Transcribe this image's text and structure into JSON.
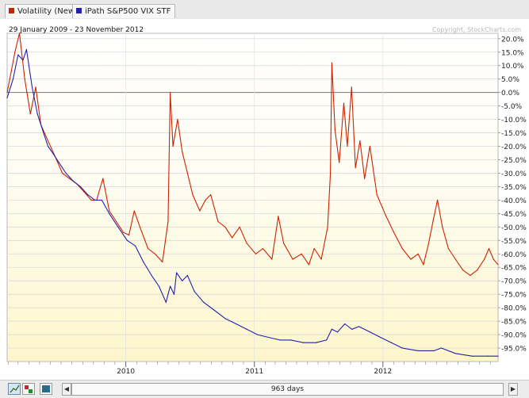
{
  "legend": [
    {
      "label": "Volatility (New)",
      "color": "#cc2200"
    },
    {
      "label": "iPath S&P500 VIX STF",
      "color": "#2222aa"
    }
  ],
  "date_range": "29 January 2009 - 23 November 2012",
  "copyright": "Copyright, StockCharts.com",
  "scroll_label": "963 days",
  "chart_data": {
    "type": "line",
    "ylabel_format": "percent",
    "ylim": [
      -100,
      22
    ],
    "yticks": [
      20,
      15,
      10,
      5,
      0,
      -5,
      -10,
      -15,
      -20,
      -25,
      -30,
      -35,
      -40,
      -45,
      -50,
      -55,
      -60,
      -65,
      -70,
      -75,
      -80,
      -85,
      -90,
      -95
    ],
    "ytick_labels": [
      "20.0%",
      "15.0%",
      "10.0%",
      "5.0%",
      "0.0%",
      "-5.0%",
      "-10.0%",
      "-15.0%",
      "-20.0%",
      "-25.0%",
      "-30.0%",
      "-35.0%",
      "-40.0%",
      "-45.0%",
      "-50.0%",
      "-55.0%",
      "-60.0%",
      "-65.0%",
      "-70.0%",
      "-75.0%",
      "-80.0%",
      "-85.0%",
      "-90.0%",
      "-95.0%"
    ],
    "x_start": "2009-01-29",
    "x_end": "2012-11-23",
    "xticks": [
      {
        "label": "2010",
        "date": "2010-01-01"
      },
      {
        "label": "2011",
        "date": "2011-01-01"
      },
      {
        "label": "2012",
        "date": "2012-01-01"
      }
    ],
    "series": [
      {
        "name": "Volatility (New)",
        "color": "#cc2200",
        "points": [
          [
            "2009-01-29",
            0
          ],
          [
            "2009-02-10",
            8
          ],
          [
            "2009-02-20",
            15
          ],
          [
            "2009-03-05",
            22
          ],
          [
            "2009-03-20",
            5
          ],
          [
            "2009-04-05",
            -8
          ],
          [
            "2009-04-20",
            2
          ],
          [
            "2009-05-05",
            -12
          ],
          [
            "2009-05-25",
            -18
          ],
          [
            "2009-06-15",
            -24
          ],
          [
            "2009-07-05",
            -30
          ],
          [
            "2009-07-25",
            -32
          ],
          [
            "2009-08-15",
            -34
          ],
          [
            "2009-09-05",
            -37
          ],
          [
            "2009-09-25",
            -40
          ],
          [
            "2009-10-10",
            -40
          ],
          [
            "2009-10-28",
            -32
          ],
          [
            "2009-11-15",
            -44
          ],
          [
            "2009-12-05",
            -48
          ],
          [
            "2009-12-25",
            -52
          ],
          [
            "2010-01-10",
            -53
          ],
          [
            "2010-01-25",
            -44
          ],
          [
            "2010-02-10",
            -50
          ],
          [
            "2010-03-05",
            -58
          ],
          [
            "2010-03-25",
            -60
          ],
          [
            "2010-04-15",
            -63
          ],
          [
            "2010-05-01",
            -48
          ],
          [
            "2010-05-07",
            0
          ],
          [
            "2010-05-15",
            -20
          ],
          [
            "2010-05-28",
            -10
          ],
          [
            "2010-06-10",
            -22
          ],
          [
            "2010-06-25",
            -30
          ],
          [
            "2010-07-10",
            -38
          ],
          [
            "2010-07-30",
            -44
          ],
          [
            "2010-08-15",
            -40
          ],
          [
            "2010-08-30",
            -38
          ],
          [
            "2010-09-20",
            -48
          ],
          [
            "2010-10-10",
            -50
          ],
          [
            "2010-10-30",
            -54
          ],
          [
            "2010-11-20",
            -50
          ],
          [
            "2010-12-10",
            -56
          ],
          [
            "2011-01-05",
            -60
          ],
          [
            "2011-01-25",
            -58
          ],
          [
            "2011-02-20",
            -62
          ],
          [
            "2011-03-10",
            -46
          ],
          [
            "2011-03-25",
            -56
          ],
          [
            "2011-04-20",
            -62
          ],
          [
            "2011-05-15",
            -60
          ],
          [
            "2011-06-05",
            -64
          ],
          [
            "2011-06-20",
            -58
          ],
          [
            "2011-07-10",
            -62
          ],
          [
            "2011-07-28",
            -50
          ],
          [
            "2011-08-05",
            -30
          ],
          [
            "2011-08-09",
            11
          ],
          [
            "2011-08-18",
            -14
          ],
          [
            "2011-08-30",
            -26
          ],
          [
            "2011-09-12",
            -4
          ],
          [
            "2011-09-22",
            -20
          ],
          [
            "2011-10-04",
            2
          ],
          [
            "2011-10-15",
            -28
          ],
          [
            "2011-10-28",
            -18
          ],
          [
            "2011-11-10",
            -32
          ],
          [
            "2011-11-25",
            -20
          ],
          [
            "2011-12-15",
            -38
          ],
          [
            "2012-01-10",
            -46
          ],
          [
            "2012-02-01",
            -52
          ],
          [
            "2012-02-25",
            -58
          ],
          [
            "2012-03-20",
            -62
          ],
          [
            "2012-04-10",
            -60
          ],
          [
            "2012-04-25",
            -64
          ],
          [
            "2012-05-10",
            -56
          ],
          [
            "2012-05-22",
            -48
          ],
          [
            "2012-06-04",
            -40
          ],
          [
            "2012-06-18",
            -50
          ],
          [
            "2012-07-05",
            -58
          ],
          [
            "2012-07-25",
            -62
          ],
          [
            "2012-08-15",
            -66
          ],
          [
            "2012-09-05",
            -68
          ],
          [
            "2012-09-25",
            -66
          ],
          [
            "2012-10-15",
            -62
          ],
          [
            "2012-10-28",
            -58
          ],
          [
            "2012-11-10",
            -62
          ],
          [
            "2012-11-23",
            -64
          ]
        ]
      },
      {
        "name": "iPath S&P500 VIX STF",
        "color": "#2222aa",
        "points": [
          [
            "2009-01-29",
            -2
          ],
          [
            "2009-02-15",
            5
          ],
          [
            "2009-03-01",
            14
          ],
          [
            "2009-03-15",
            12
          ],
          [
            "2009-03-25",
            16
          ],
          [
            "2009-04-10",
            2
          ],
          [
            "2009-04-25",
            -8
          ],
          [
            "2009-05-10",
            -14
          ],
          [
            "2009-05-25",
            -20
          ],
          [
            "2009-06-10",
            -23
          ],
          [
            "2009-06-25",
            -26
          ],
          [
            "2009-07-15",
            -30
          ],
          [
            "2009-08-05",
            -33
          ],
          [
            "2009-08-25",
            -35
          ],
          [
            "2009-09-15",
            -38
          ],
          [
            "2009-10-05",
            -40
          ],
          [
            "2009-10-25",
            -40
          ],
          [
            "2009-11-15",
            -45
          ],
          [
            "2009-12-10",
            -50
          ],
          [
            "2010-01-05",
            -55
          ],
          [
            "2010-01-28",
            -57
          ],
          [
            "2010-02-20",
            -63
          ],
          [
            "2010-03-15",
            -68
          ],
          [
            "2010-04-05",
            -72
          ],
          [
            "2010-04-25",
            -78
          ],
          [
            "2010-05-07",
            -72
          ],
          [
            "2010-05-18",
            -75
          ],
          [
            "2010-05-25",
            -67
          ],
          [
            "2010-06-10",
            -70
          ],
          [
            "2010-06-25",
            -68
          ],
          [
            "2010-07-15",
            -74
          ],
          [
            "2010-08-10",
            -78
          ],
          [
            "2010-09-10",
            -81
          ],
          [
            "2010-10-10",
            -84
          ],
          [
            "2010-11-10",
            -86
          ],
          [
            "2010-12-10",
            -88
          ],
          [
            "2011-01-10",
            -90
          ],
          [
            "2011-02-10",
            -91
          ],
          [
            "2011-03-15",
            -92
          ],
          [
            "2011-04-15",
            -92
          ],
          [
            "2011-05-20",
            -93
          ],
          [
            "2011-06-25",
            -93
          ],
          [
            "2011-07-25",
            -92
          ],
          [
            "2011-08-09",
            -88
          ],
          [
            "2011-08-25",
            -89
          ],
          [
            "2011-09-15",
            -86
          ],
          [
            "2011-10-05",
            -88
          ],
          [
            "2011-10-25",
            -87
          ],
          [
            "2011-11-25",
            -89
          ],
          [
            "2011-12-25",
            -91
          ],
          [
            "2012-01-25",
            -93
          ],
          [
            "2012-02-25",
            -95
          ],
          [
            "2012-04-10",
            -96
          ],
          [
            "2012-05-25",
            -96
          ],
          [
            "2012-06-15",
            -95
          ],
          [
            "2012-07-25",
            -97
          ],
          [
            "2012-09-10",
            -98
          ],
          [
            "2012-10-25",
            -98
          ],
          [
            "2012-11-23",
            -98
          ]
        ]
      }
    ]
  }
}
